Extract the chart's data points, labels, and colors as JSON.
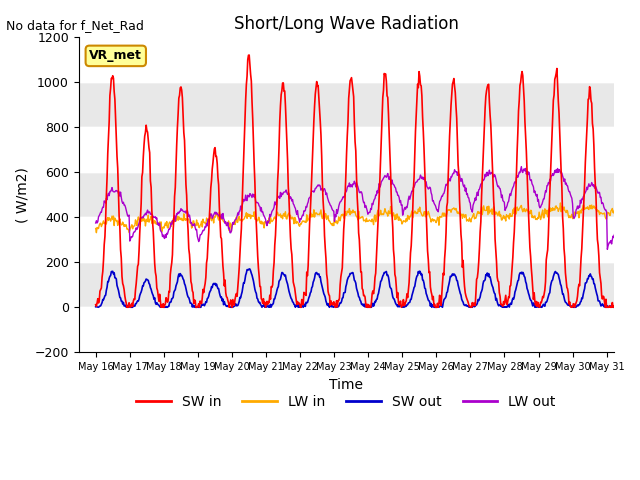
{
  "title": "Short/Long Wave Radiation",
  "top_left_text": "No data for f_Net_Rad",
  "ylabel": "( W/m2)",
  "xlabel": "Time",
  "ylim": [
    -200,
    1200
  ],
  "yticks": [
    -200,
    0,
    200,
    400,
    600,
    800,
    1000,
    1200
  ],
  "xlim_days": [
    15.5,
    31.2
  ],
  "xtick_labels": [
    "May 16",
    "May 17",
    "May 18",
    "May 19",
    "May 20",
    "May 21",
    "May 22",
    "May 23",
    "May 24",
    "May 25",
    "May 26",
    "May 27",
    "May 28",
    "May 29",
    "May 30",
    "May 31"
  ],
  "xtick_positions": [
    16,
    17,
    18,
    19,
    20,
    21,
    22,
    23,
    24,
    25,
    26,
    27,
    28,
    29,
    30,
    31
  ],
  "legend_labels": [
    "SW in",
    "LW in",
    "SW out",
    "LW out"
  ],
  "legend_colors": [
    "#ff0000",
    "#ffaa00",
    "#0000cc",
    "#aa00cc"
  ],
  "box_label": "VR_met",
  "box_bg": "#ffff99",
  "box_border": "#cc8800",
  "sw_in_color": "#ff0000",
  "lw_in_color": "#ffaa00",
  "sw_out_color": "#0000cc",
  "lw_out_color": "#aa00cc",
  "bg_color": "#e8e8e8",
  "grid_color": "#ffffff",
  "n_days": 16,
  "start_day": 16
}
